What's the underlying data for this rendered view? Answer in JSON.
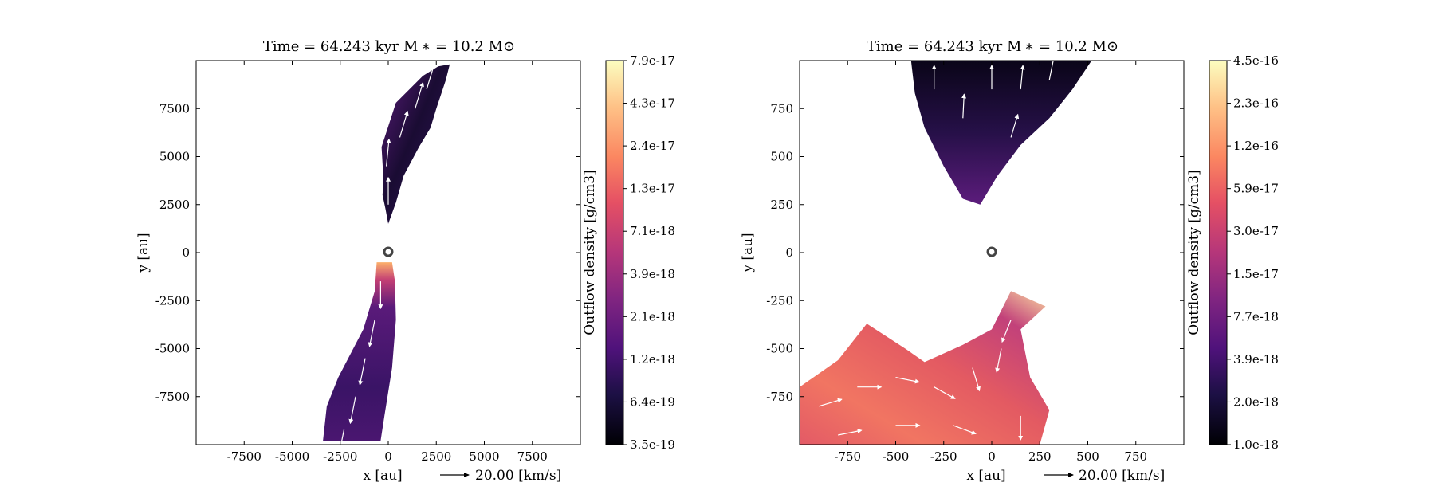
{
  "chart_data": [
    {
      "type": "heatmap",
      "title": "Time = 64.243 kyr    M ∗ = 10.2 M⊙",
      "xlabel": "x [au]",
      "ylabel": "y [au]",
      "xlim": [
        -10000,
        10000
      ],
      "ylim": [
        -10000,
        10000
      ],
      "xticks": [
        -7500,
        -5000,
        -2500,
        0,
        2500,
        5000,
        7500
      ],
      "yticks": [
        -7500,
        -5000,
        -2500,
        0,
        2500,
        5000,
        7500
      ],
      "xtick_labels": [
        "-7500",
        "-5000",
        "-2500",
        "0",
        "2500",
        "5000",
        "7500"
      ],
      "ytick_labels": [
        "-7500",
        "-5000",
        "-2500",
        "0",
        "2500",
        "5000",
        "7500"
      ],
      "velocity_key_label": "20.00 [km/s]",
      "colorbar": {
        "label": "Outflow density [g/cm3]",
        "colormap": "magma",
        "scale": "log",
        "ticks": [
          "3.5e-19",
          "6.4e-19",
          "1.2e-18",
          "2.1e-18",
          "3.9e-18",
          "7.1e-18",
          "1.3e-17",
          "2.4e-17",
          "4.3e-17",
          "7.9e-17"
        ]
      },
      "star_position": [
        0,
        0
      ],
      "lobes": [
        {
          "name": "upper lobe",
          "outline": [
            [
              -250,
              3800
            ],
            [
              -350,
              5500
            ],
            [
              400,
              7800
            ],
            [
              1800,
              9200
            ],
            [
              2600,
              9700
            ],
            [
              3200,
              9800
            ],
            [
              3000,
              9000
            ],
            [
              2500,
              7500
            ],
            [
              2200,
              6500
            ],
            [
              1600,
              5500
            ],
            [
              800,
              4000
            ],
            [
              400,
              2600
            ],
            [
              0,
              1500
            ],
            [
              -150,
              2300
            ],
            [
              -300,
              3000
            ]
          ],
          "arrows": [
            [
              0,
              2500,
              0,
              1
            ],
            [
              -100,
              4500,
              0.1,
              1
            ],
            [
              600,
              6000,
              0.3,
              1
            ],
            [
              1400,
              7500,
              0.3,
              1
            ],
            [
              2000,
              8500,
              0.3,
              1
            ]
          ]
        },
        {
          "name": "lower lobe",
          "outline": [
            [
              -600,
              -500
            ],
            [
              200,
              -500
            ],
            [
              350,
              -1500
            ],
            [
              400,
              -3500
            ],
            [
              200,
              -6000
            ],
            [
              -200,
              -8500
            ],
            [
              -400,
              -9800
            ],
            [
              -3400,
              -9800
            ],
            [
              -3200,
              -8000
            ],
            [
              -2600,
              -6500
            ],
            [
              -1300,
              -4000
            ],
            [
              -700,
              -2000
            ]
          ],
          "arrows": [
            [
              -400,
              -1500,
              0,
              -1
            ],
            [
              -700,
              -3500,
              -0.2,
              -1
            ],
            [
              -1200,
              -5500,
              -0.2,
              -1
            ],
            [
              -1700,
              -7500,
              -0.2,
              -1
            ],
            [
              -2300,
              -9200,
              -0.2,
              -1
            ]
          ]
        }
      ]
    },
    {
      "type": "heatmap",
      "title": "Time = 64.243 kyr    M ∗ = 10.2 M⊙",
      "xlabel": "x [au]",
      "ylabel": "y [au]",
      "xlim": [
        -1000,
        1000
      ],
      "ylim": [
        -1000,
        1000
      ],
      "xticks": [
        -750,
        -500,
        -250,
        0,
        250,
        500,
        750
      ],
      "yticks": [
        -750,
        -500,
        -250,
        0,
        250,
        500,
        750
      ],
      "xtick_labels": [
        "-750",
        "-500",
        "-250",
        "0",
        "250",
        "500",
        "750"
      ],
      "ytick_labels": [
        "-750",
        "-500",
        "-250",
        "0",
        "250",
        "500",
        "750"
      ],
      "velocity_key_label": "20.00 [km/s]",
      "colorbar": {
        "label": "Outflow density [g/cm3]",
        "colormap": "magma",
        "scale": "log",
        "ticks": [
          "1.0e-18",
          "2.0e-18",
          "3.9e-18",
          "7.7e-18",
          "1.5e-17",
          "3.0e-17",
          "5.9e-17",
          "1.2e-16",
          "2.3e-16",
          "4.5e-16"
        ]
      },
      "star_position": [
        0,
        0
      ],
      "lobes": [
        {
          "name": "upper lobe",
          "outline": [
            [
              -420,
              1000
            ],
            [
              520,
              1000
            ],
            [
              420,
              850
            ],
            [
              300,
              700
            ],
            [
              150,
              560
            ],
            [
              30,
              400
            ],
            [
              -60,
              250
            ],
            [
              -150,
              280
            ],
            [
              -250,
              450
            ],
            [
              -350,
              650
            ],
            [
              -400,
              830
            ]
          ],
          "arrows": [
            [
              -300,
              850,
              0,
              1
            ],
            [
              -150,
              700,
              0.05,
              1
            ],
            [
              0,
              850,
              0,
              1
            ],
            [
              150,
              850,
              0.1,
              1
            ],
            [
              300,
              900,
              0.2,
              1
            ],
            [
              100,
              600,
              0.3,
              1
            ]
          ]
        },
        {
          "name": "lower lobe",
          "outline": [
            [
              -1000,
              -700
            ],
            [
              -800,
              -560
            ],
            [
              -650,
              -370
            ],
            [
              -450,
              -500
            ],
            [
              -350,
              -570
            ],
            [
              -150,
              -480
            ],
            [
              0,
              -400
            ],
            [
              100,
              -200
            ],
            [
              280,
              -280
            ],
            [
              150,
              -400
            ],
            [
              200,
              -650
            ],
            [
              300,
              -820
            ],
            [
              250,
              -1000
            ],
            [
              -1000,
              -1000
            ]
          ],
          "arrows": [
            [
              -900,
              -800,
              1,
              0.3
            ],
            [
              -700,
              -700,
              1,
              0
            ],
            [
              -500,
              -650,
              1,
              -0.2
            ],
            [
              -300,
              -700,
              0.9,
              -0.5
            ],
            [
              -100,
              -600,
              0.3,
              -1
            ],
            [
              50,
              -500,
              -0.2,
              -1
            ],
            [
              100,
              -350,
              -0.4,
              -1
            ],
            [
              -800,
              -950,
              1,
              0.2
            ],
            [
              -500,
              -900,
              1,
              0
            ],
            [
              -200,
              -900,
              0.8,
              -0.3
            ],
            [
              150,
              -850,
              0,
              -1
            ]
          ]
        }
      ]
    }
  ]
}
